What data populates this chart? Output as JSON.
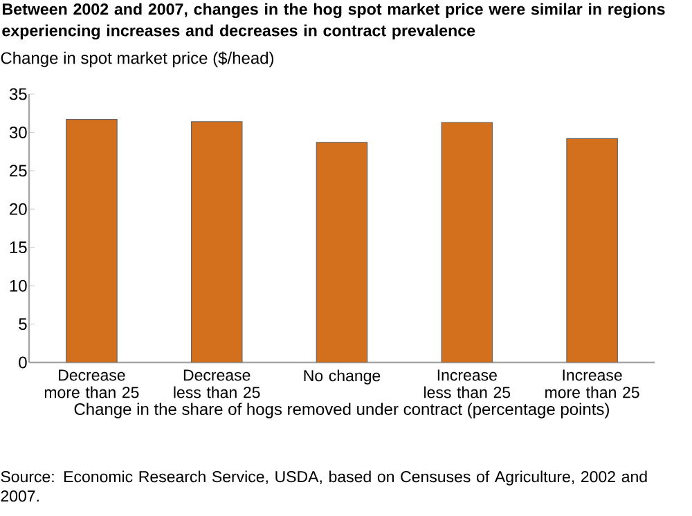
{
  "chart_data": {
    "type": "bar",
    "title": "Between 2002 and 2007, changes in the hog spot market price were similar in regions experiencing increases and decreases in contract prevalence",
    "ylabel": "Change in spot market price ($/head)",
    "xlabel": "Change in the share of hogs removed under contract (percentage points)",
    "categories": [
      "Decrease more than 25",
      "Decrease less than 25",
      "No change",
      "Increase less than 25",
      "Increase more than 25"
    ],
    "values": [
      31.7,
      31.4,
      28.7,
      31.3,
      29.2
    ],
    "color": "#d2701d",
    "ylim": [
      0,
      35
    ],
    "yticks": [
      0,
      5,
      10,
      15,
      20,
      25,
      30,
      35
    ],
    "grid": false,
    "annotations": [
      "Source: Economic Research Service, USDA, based on Censuses of Agriculture, 2002 and 2007."
    ]
  }
}
